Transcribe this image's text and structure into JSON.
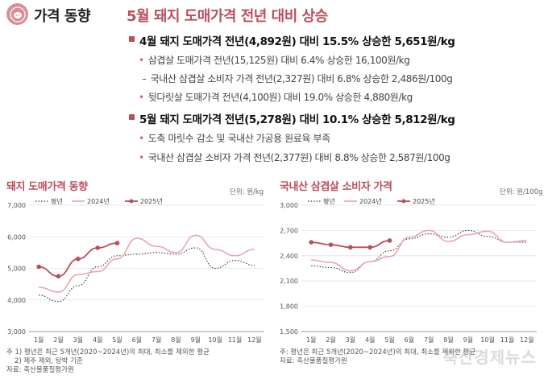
{
  "header": {
    "section_title": "가격 동향",
    "headline": "5월 돼지 도매가격 전년 대비 상승"
  },
  "bullets": [
    {
      "text": "4월 돼지 도매가격 전년(4,892원) 대비 15.5% 상승한 5,651원/kg",
      "subs": [
        {
          "marker": "•",
          "text": "삼겹살 도매가격 전년(15,125원) 대비 6.4% 상승한 16,100원/kg"
        },
        {
          "marker": "–",
          "text": "국내산 삼겹살 소비자 가격 전년(2,327원) 대비 6.8% 상승한 2,486원/100g"
        },
        {
          "marker": "•",
          "text": "뒷다릿살 도매가격 전년(4,100원) 대비 19.0% 상승한 4,880원/kg"
        }
      ]
    },
    {
      "text": "5월 돼지 도매가격 전년(5,278원) 대비 10.1% 상승한 5,812원/kg",
      "subs": [
        {
          "marker": "•",
          "text": "도축 마릿수 감소 및 국내산 가공용 원료육 부족"
        },
        {
          "marker": "•",
          "text": "국내산 삼겹살 소비자 가격 전년(2,377원) 대비 8.8% 상승한 2,587원/100g"
        }
      ]
    }
  ],
  "footer": {
    "left_notes": [
      "주 1) 평년은 최근 5개년(2020~2024년)의 최대, 최소를 제외한 평균",
      "2) 제주 제외, 탕박 기준",
      "자료: 축산물품질평가원"
    ],
    "right_notes": [
      "주: 평년은 최근 5개년(2020~2024년)의 최대, 최소를 제외한 평균",
      "자료: 축산물품질평가원"
    ],
    "watermark": "축산경제뉴스"
  },
  "colors": {
    "accent": "#b8505c",
    "y2024": "#e8a7af",
    "y2025": "#b8505c",
    "normal": "#444444"
  },
  "chart_data": [
    {
      "type": "line",
      "title": "돼지 도매가격 동향",
      "unit": "단위: 원/kg",
      "categories": [
        "1월",
        "2월",
        "3월",
        "4월",
        "5월",
        "6월",
        "7월",
        "8월",
        "9월",
        "10월",
        "11월",
        "12월"
      ],
      "ylim": [
        3000,
        7000
      ],
      "yticks": [
        "3,000",
        "4,000",
        "5,000",
        "6,000",
        "7,000"
      ],
      "grid": true,
      "legend_position": "top-left",
      "series": [
        {
          "name": "평년",
          "style": "dotted",
          "values": [
            4150,
            3950,
            4450,
            5050,
            5400,
            5450,
            5500,
            5450,
            5650,
            5000,
            5250,
            5100
          ]
        },
        {
          "name": "2024년",
          "style": "solid-light",
          "values": [
            4400,
            4250,
            4800,
            4900,
            5300,
            5950,
            5700,
            5500,
            6050,
            5600,
            5400,
            5600
          ]
        },
        {
          "name": "2025년",
          "style": "solid-markers",
          "values": [
            5050,
            4750,
            5300,
            5650,
            5800,
            null,
            null,
            null,
            null,
            null,
            null,
            null
          ]
        }
      ]
    },
    {
      "type": "line",
      "title": "국내산 삼겹살 소비자 가격",
      "unit": "단위: 원/100g",
      "categories": [
        "1월",
        "2월",
        "3월",
        "4월",
        "5월",
        "6월",
        "7월",
        "8월",
        "9월",
        "10월",
        "11월",
        "12월"
      ],
      "ylim": [
        1500,
        3000
      ],
      "yticks": [
        "1,500",
        "1,800",
        "2,100",
        "2,400",
        "2,700",
        "3,000"
      ],
      "grid": true,
      "legend_position": "top-left",
      "series": [
        {
          "name": "평년",
          "style": "dotted",
          "values": [
            2280,
            2260,
            2200,
            2330,
            2460,
            2600,
            2660,
            2620,
            2700,
            2630,
            2560,
            2560
          ]
        },
        {
          "name": "2024년",
          "style": "solid-light",
          "values": [
            2350,
            2320,
            2220,
            2330,
            2390,
            2620,
            2700,
            2570,
            2650,
            2690,
            2560,
            2580
          ]
        },
        {
          "name": "2025년",
          "style": "solid-markers",
          "values": [
            2560,
            2530,
            2500,
            2500,
            2580,
            null,
            null,
            null,
            null,
            null,
            null,
            null
          ]
        }
      ]
    }
  ]
}
